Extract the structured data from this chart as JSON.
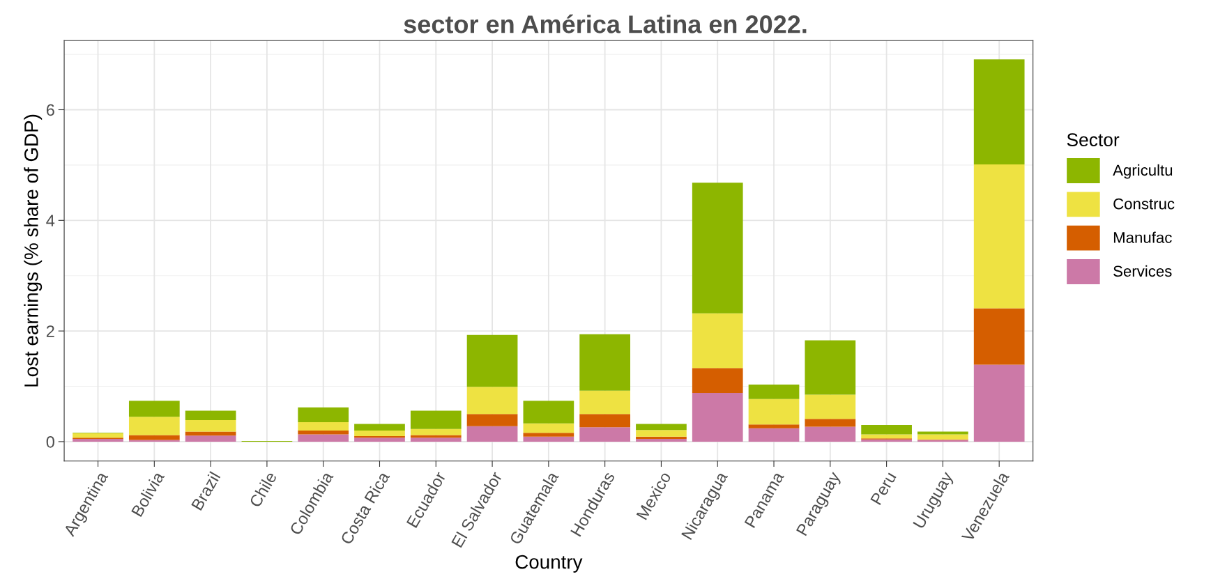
{
  "chart_data": {
    "type": "bar",
    "title": "sector en América Latina en 2022.",
    "xlabel": "Country",
    "ylabel": "Lost earnings (% share of GDP)",
    "legend_title": "Sector",
    "categories": [
      "Argentina",
      "Bolivia",
      "Brazil",
      "Chile",
      "Colombia",
      "Costa Rica",
      "Ecuador",
      "El Salvador",
      "Guatemala",
      "Honduras",
      "Mexico",
      "Nicaragua",
      "Panama",
      "Paraguay",
      "Peru",
      "Uruguay",
      "Venezuela"
    ],
    "stacked": true,
    "series": [
      {
        "name": "Services",
        "color": "#cc79a7",
        "values": [
          0.05,
          0.03,
          0.11,
          0,
          0.13,
          0.07,
          0.07,
          0.28,
          0.09,
          0.26,
          0.05,
          0.88,
          0.24,
          0.27,
          0.04,
          0.03,
          1.39
        ]
      },
      {
        "name": "Manufac",
        "color": "#d55e00",
        "values": [
          0.02,
          0.09,
          0.07,
          0,
          0.07,
          0.03,
          0.05,
          0.22,
          0.07,
          0.24,
          0.04,
          0.45,
          0.07,
          0.14,
          0.02,
          0.01,
          1.02
        ]
      },
      {
        "name": "Construc",
        "color": "#eee242",
        "values": [
          0.08,
          0.33,
          0.21,
          0,
          0.15,
          0.1,
          0.11,
          0.49,
          0.17,
          0.42,
          0.12,
          0.99,
          0.46,
          0.44,
          0.07,
          0.09,
          2.6
        ]
      },
      {
        "name": "Agricultu",
        "color": "#8db600",
        "values": [
          0.01,
          0.29,
          0.17,
          0.01,
          0.27,
          0.12,
          0.33,
          0.94,
          0.41,
          1.02,
          0.11,
          2.36,
          0.26,
          0.98,
          0.17,
          0.05,
          1.9
        ]
      }
    ],
    "ylim": [
      -0.35,
      7.25
    ],
    "yticks": [
      0,
      2,
      4,
      6
    ],
    "grid": true,
    "legend": "right"
  }
}
